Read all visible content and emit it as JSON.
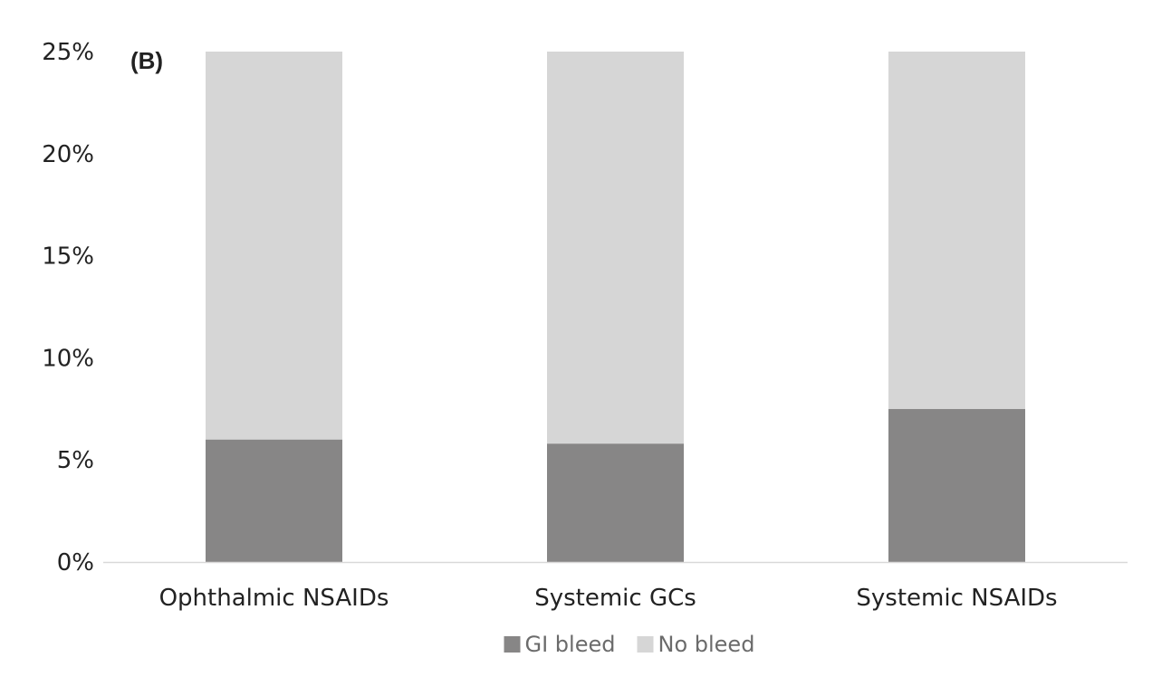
{
  "chart_data": {
    "type": "bar",
    "stacked": true,
    "panel_label": "(B)",
    "categories": [
      "Ophthalmic NSAIDs",
      "Systemic GCs",
      "Systemic NSAIDs"
    ],
    "series": [
      {
        "name": "GI bleed",
        "values": [
          6.0,
          5.8,
          7.5
        ],
        "color": "#878686"
      },
      {
        "name": "No bleed",
        "values": [
          19.0,
          19.2,
          17.5
        ],
        "color": "#d6d6d6"
      }
    ],
    "ylim": [
      0,
      25
    ],
    "yticks": [
      0,
      5,
      10,
      15,
      20,
      25
    ],
    "ytick_labels": [
      "0%",
      "5%",
      "10%",
      "15%",
      "20%",
      "25%"
    ],
    "grid": false,
    "legend": "bottom",
    "axis_color": "#d9d9d9"
  }
}
